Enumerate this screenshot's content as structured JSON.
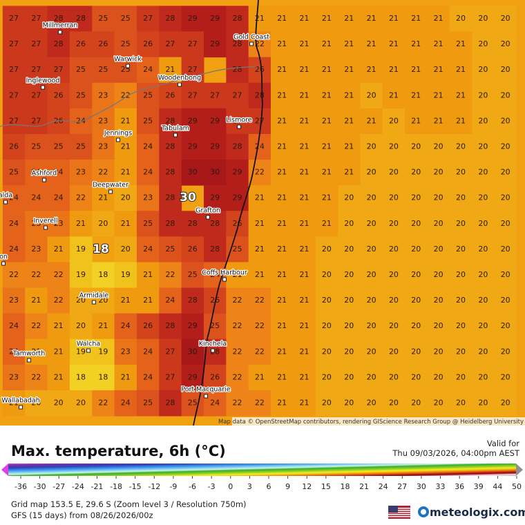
{
  "map": {
    "attribution": "Map data © OpenStreetMap contributors, rendering GIScience Research Group @ Heidelberg University",
    "places": [
      "Millmerran",
      "Gold Coast",
      "Warwick",
      "Inglewood",
      "Woodenbong",
      "Lismore",
      "Tabulam",
      "Jennings",
      "Ashford",
      "Deepwater",
      "alda",
      "Grafton",
      "Inverell",
      "on",
      "Coffs Harbour",
      "Armidale",
      "Kinchela",
      "Walcha",
      "Tamworth",
      "Port Macquarie",
      "Wallabadah"
    ],
    "extremes": [
      30,
      18
    ],
    "grid": [
      [
        27,
        27,
        28,
        28,
        25,
        25,
        27,
        28,
        29,
        29,
        28,
        21,
        21,
        21,
        21,
        21,
        21,
        21,
        21,
        21,
        20,
        20,
        20
      ],
      [
        27,
        27,
        28,
        26,
        26,
        25,
        26,
        27,
        27,
        29,
        28,
        22,
        21,
        21,
        21,
        21,
        21,
        21,
        21,
        21,
        21,
        20,
        20
      ],
      [
        27,
        27,
        27,
        25,
        25,
        25,
        24,
        21,
        27,
        null,
        28,
        26,
        21,
        21,
        21,
        21,
        21,
        21,
        21,
        21,
        21,
        20,
        20
      ],
      [
        27,
        27,
        26,
        25,
        23,
        22,
        25,
        26,
        27,
        27,
        27,
        28,
        21,
        21,
        21,
        21,
        20,
        21,
        21,
        21,
        21,
        20,
        20
      ],
      [
        27,
        27,
        26,
        24,
        23,
        21,
        25,
        28,
        29,
        29,
        27,
        27,
        21,
        21,
        21,
        21,
        21,
        20,
        21,
        21,
        21,
        20,
        20
      ],
      [
        26,
        25,
        25,
        25,
        23,
        21,
        24,
        28,
        29,
        29,
        28,
        24,
        21,
        21,
        21,
        21,
        20,
        20,
        20,
        20,
        20,
        20,
        20
      ],
      [
        25,
        24,
        24,
        23,
        22,
        21,
        24,
        28,
        30,
        30,
        29,
        22,
        21,
        21,
        21,
        21,
        20,
        20,
        20,
        20,
        20,
        20,
        20
      ],
      [
        24,
        24,
        24,
        22,
        21,
        20,
        23,
        28,
        null,
        29,
        29,
        21,
        21,
        21,
        21,
        20,
        20,
        20,
        20,
        20,
        20,
        20,
        20
      ],
      [
        24,
        23,
        23,
        21,
        20,
        21,
        25,
        28,
        28,
        28,
        26,
        21,
        21,
        21,
        21,
        20,
        20,
        20,
        20,
        20,
        20,
        20,
        20
      ],
      [
        24,
        23,
        21,
        19,
        null,
        20,
        24,
        25,
        26,
        28,
        25,
        21,
        21,
        21,
        20,
        20,
        20,
        20,
        20,
        20,
        20,
        20,
        20
      ],
      [
        22,
        22,
        22,
        19,
        18,
        19,
        21,
        22,
        25,
        24,
        21,
        21,
        21,
        21,
        20,
        20,
        20,
        20,
        20,
        20,
        20,
        20,
        20
      ],
      [
        23,
        21,
        22,
        20,
        20,
        21,
        21,
        24,
        28,
        26,
        22,
        22,
        21,
        21,
        20,
        20,
        20,
        20,
        20,
        20,
        20,
        20,
        20
      ],
      [
        24,
        22,
        21,
        20,
        21,
        24,
        26,
        28,
        29,
        25,
        22,
        22,
        21,
        21,
        20,
        20,
        20,
        20,
        20,
        20,
        20,
        20,
        20
      ],
      [
        24,
        21,
        21,
        19,
        19,
        23,
        24,
        27,
        30,
        28,
        22,
        22,
        21,
        21,
        20,
        20,
        20,
        20,
        20,
        20,
        20,
        20,
        20
      ],
      [
        23,
        22,
        21,
        18,
        18,
        21,
        24,
        27,
        29,
        26,
        22,
        21,
        21,
        21,
        20,
        20,
        20,
        20,
        20,
        20,
        20,
        20,
        20
      ],
      [
        21,
        20,
        20,
        20,
        22,
        24,
        25,
        28,
        25,
        24,
        22,
        22,
        21,
        21,
        20,
        20,
        20,
        20,
        20,
        20,
        20,
        20,
        20
      ]
    ]
  },
  "legend": {
    "title": "Max. temperature, 6h (°C)",
    "ticks": [
      -36,
      -30,
      -27,
      -24,
      -21,
      -18,
      -15,
      -12,
      -9,
      -6,
      -3,
      0,
      3,
      6,
      9,
      12,
      15,
      18,
      21,
      24,
      27,
      30,
      33,
      36,
      39,
      44,
      50
    ]
  },
  "valid": {
    "label": "Valid for",
    "time": "Thu 09/03/2026, 04:00pm AEST"
  },
  "info": {
    "grid": "Grid map 153.5 E, 29.6 S (Zoom level 3 / Resolution 750m)",
    "model": "GFS (15 days) from  08/26/2026/00z"
  },
  "brand": "meteologix.com"
}
